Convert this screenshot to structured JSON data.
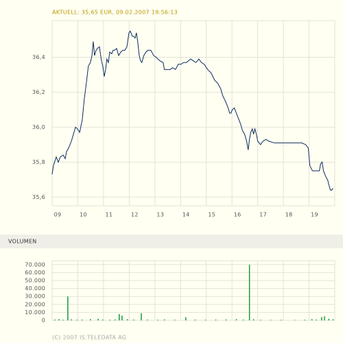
{
  "chart_data": [
    {
      "type": "line",
      "title": "AKTUELL: 35,65 EUR, 09.02.2007 19:56:13",
      "color": "#0b2a5a",
      "grid": true,
      "xlim": [
        9,
        20
      ],
      "xticks": [
        {
          "value": 9,
          "label": "09"
        },
        10,
        11,
        12,
        13,
        14,
        15,
        16,
        17,
        18,
        19
      ],
      "ylim": [
        35.55,
        36.61
      ],
      "yticks": [
        {
          "value": 35.6,
          "label": "35,6"
        },
        {
          "value": 35.8,
          "label": "35,8"
        },
        {
          "value": 36.0,
          "label": "36,0"
        },
        {
          "value": 36.2,
          "label": "36,2"
        },
        {
          "value": 36.4,
          "label": "36,4"
        }
      ],
      "x": [
        9.0,
        9.05,
        9.16,
        9.24,
        9.32,
        9.43,
        9.51,
        9.56,
        9.64,
        9.75,
        9.83,
        9.91,
        9.99,
        10.07,
        10.17,
        10.25,
        10.33,
        10.41,
        10.49,
        10.55,
        10.6,
        10.65,
        10.71,
        10.76,
        10.84,
        10.92,
        10.97,
        11.03,
        11.08,
        11.13,
        11.19,
        11.24,
        11.32,
        11.37,
        11.43,
        11.51,
        11.59,
        11.67,
        11.75,
        11.83,
        11.91,
        11.99,
        12.04,
        12.12,
        12.17,
        12.23,
        12.28,
        12.33,
        12.39,
        12.44,
        12.49,
        12.57,
        12.65,
        12.73,
        12.84,
        12.95,
        13.05,
        13.19,
        13.32,
        13.37,
        13.48,
        13.59,
        13.69,
        13.8,
        13.91,
        14.01,
        14.12,
        14.23,
        14.39,
        14.49,
        14.6,
        14.71,
        14.81,
        14.92,
        15.05,
        15.19,
        15.32,
        15.45,
        15.56,
        15.64,
        15.77,
        15.85,
        15.91,
        15.96,
        16.01,
        16.09,
        16.17,
        16.25,
        16.33,
        16.41,
        16.49,
        16.57,
        16.63,
        16.68,
        16.73,
        16.79,
        16.84,
        16.89,
        16.95,
        17.0,
        17.11,
        17.21,
        17.32,
        17.43,
        17.64,
        18.17,
        18.71,
        18.87,
        18.97,
        19.03,
        19.13,
        19.4,
        19.45,
        19.51,
        19.56,
        19.67,
        19.72,
        19.77,
        19.83,
        19.88,
        19.93
      ],
      "values": [
        35.73,
        35.78,
        35.83,
        35.8,
        35.83,
        35.84,
        35.82,
        35.86,
        35.88,
        35.92,
        35.96,
        36.0,
        35.99,
        35.97,
        36.04,
        36.16,
        36.25,
        36.35,
        36.37,
        36.41,
        36.49,
        36.41,
        36.44,
        36.45,
        36.46,
        36.38,
        36.35,
        36.29,
        36.33,
        36.39,
        36.37,
        36.43,
        36.42,
        36.44,
        36.44,
        36.45,
        36.41,
        36.43,
        36.44,
        36.44,
        36.46,
        36.54,
        36.55,
        36.52,
        36.52,
        36.51,
        36.54,
        36.49,
        36.41,
        36.38,
        36.37,
        36.41,
        36.43,
        36.44,
        36.44,
        36.41,
        36.4,
        36.38,
        36.37,
        36.33,
        36.33,
        36.33,
        36.34,
        36.33,
        36.36,
        36.36,
        36.37,
        36.37,
        36.39,
        36.38,
        36.37,
        36.39,
        36.37,
        36.36,
        36.33,
        36.31,
        36.27,
        36.25,
        36.22,
        36.18,
        36.14,
        36.11,
        36.08,
        36.08,
        36.1,
        36.11,
        36.08,
        36.05,
        36.02,
        35.98,
        35.96,
        35.92,
        35.87,
        35.93,
        35.97,
        35.99,
        35.96,
        35.99,
        35.96,
        35.92,
        35.9,
        35.92,
        35.93,
        35.92,
        35.91,
        35.91,
        35.91,
        35.9,
        35.88,
        35.78,
        35.75,
        35.75,
        35.79,
        35.8,
        35.75,
        35.71,
        35.7,
        35.67,
        35.64,
        35.64,
        35.65
      ]
    },
    {
      "type": "bar",
      "title": "VOLUMEN",
      "color": "#1a9a3a",
      "grid": true,
      "xlim": [
        9,
        20
      ],
      "xticks": [
        9,
        10,
        11,
        12,
        13,
        14,
        15,
        16,
        17,
        18,
        19
      ],
      "ylim": [
        0,
        75000
      ],
      "yticks": [
        0,
        {
          "value": 10000,
          "label": "10.000"
        },
        {
          "value": 20000,
          "label": "20.000"
        },
        {
          "value": 30000,
          "label": "30.000"
        },
        {
          "value": 40000,
          "label": "40.000"
        },
        {
          "value": 50000,
          "label": "50.000"
        },
        {
          "value": 60000,
          "label": "60.000"
        },
        {
          "value": 70000,
          "label": "70.000"
        }
      ],
      "x": [
        9.11,
        9.27,
        9.43,
        9.61,
        9.75,
        9.96,
        10.17,
        10.49,
        10.79,
        10.97,
        11.24,
        11.45,
        11.61,
        11.72,
        11.93,
        12.17,
        12.47,
        12.71,
        13.11,
        13.37,
        13.77,
        14.2,
        14.57,
        14.97,
        15.37,
        15.77,
        16.17,
        16.44,
        16.68,
        16.84,
        17.11,
        17.51,
        17.91,
        18.44,
        18.84,
        19.11,
        19.28,
        19.49,
        19.6,
        19.77,
        19.93
      ],
      "values": [
        1000,
        1500,
        800,
        30000,
        1200,
        800,
        1000,
        1500,
        2000,
        1000,
        800,
        1200,
        8000,
        6000,
        1500,
        1000,
        9000,
        1000,
        800,
        1200,
        800,
        4000,
        1000,
        800,
        1000,
        1200,
        1500,
        1000,
        70000,
        1500,
        800,
        600,
        800,
        600,
        800,
        1500,
        1000,
        4000,
        5000,
        2000,
        1500
      ]
    }
  ],
  "footer": "(C) 2007 IS.TELEDATA AG"
}
